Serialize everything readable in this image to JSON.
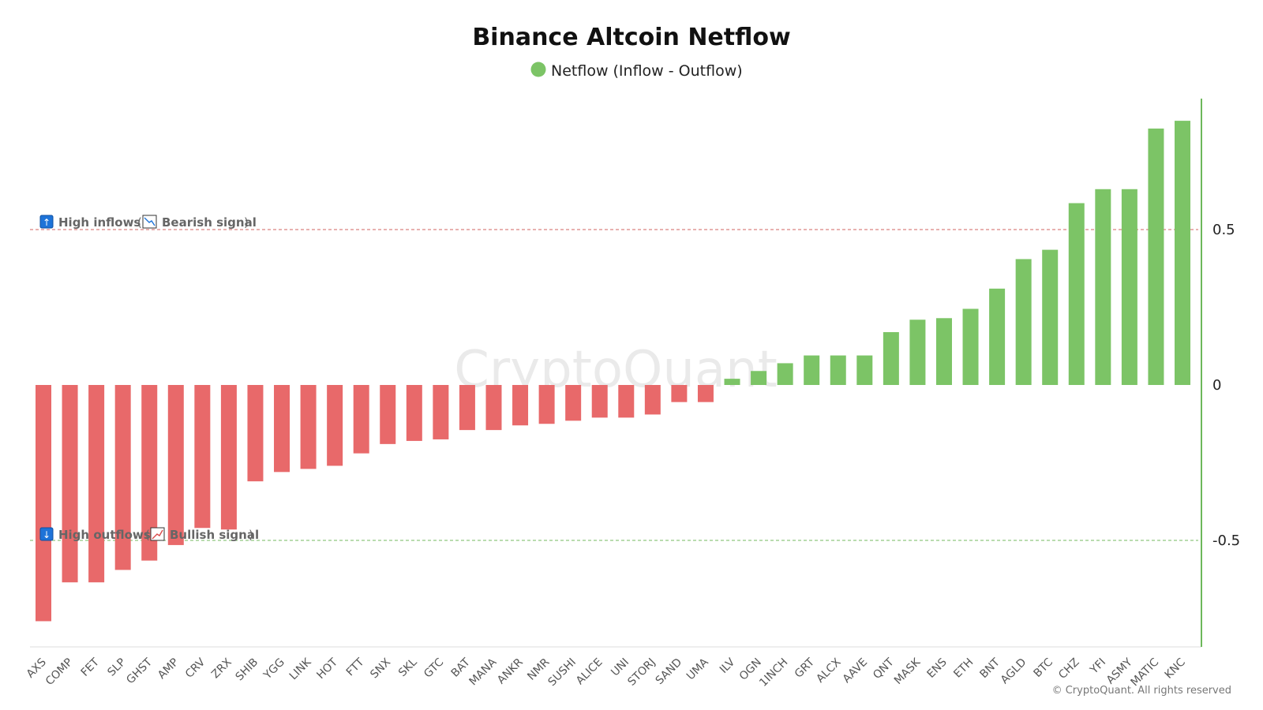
{
  "chart_data": {
    "type": "bar",
    "title": "Binance Altcoin Netflow",
    "legend": [
      {
        "label": "Netflow (Inflow - Outflow)",
        "color": "#7cc466"
      }
    ],
    "categories": [
      "AXS",
      "COMP",
      "FET",
      "SLP",
      "GHST",
      "AMP",
      "CRV",
      "ZRX",
      "SHIB",
      "YGG",
      "LINK",
      "HOT",
      "FTT",
      "SNX",
      "SKL",
      "GTC",
      "BAT",
      "MANA",
      "ANKR",
      "NMR",
      "SUSHI",
      "ALICE",
      "UNI",
      "STORJ",
      "SAND",
      "UMA",
      "ILV",
      "OGN",
      "1INCH",
      "GRT",
      "ALCX",
      "AAVE",
      "QNT",
      "MASK",
      "ENS",
      "ETH",
      "BNT",
      "AGLD",
      "BTC",
      "CHZ",
      "YFI",
      "ASMY",
      "MATIC",
      "KNC"
    ],
    "values": [
      -0.76,
      -0.635,
      -0.635,
      -0.595,
      -0.565,
      -0.515,
      -0.46,
      -0.465,
      -0.31,
      -0.28,
      -0.27,
      -0.26,
      -0.22,
      -0.19,
      -0.18,
      -0.175,
      -0.145,
      -0.145,
      -0.13,
      -0.125,
      -0.115,
      -0.105,
      -0.105,
      -0.095,
      -0.055,
      -0.055,
      0.02,
      0.045,
      0.07,
      0.095,
      0.095,
      0.095,
      0.17,
      0.21,
      0.215,
      0.245,
      0.31,
      0.405,
      0.435,
      0.585,
      0.63,
      0.63,
      0.825,
      0.85
    ],
    "positive_color": "#7cc466",
    "negative_color": "#e8696a",
    "ylim": [
      -0.85,
      0.92
    ],
    "yticks": [
      0.5,
      0,
      -0.5
    ],
    "ytick_labels": [
      "0.5",
      "0",
      "-0.5"
    ],
    "y_axis_position": "right",
    "reference_lines": [
      {
        "value": 0.5,
        "color": "#d9827f",
        "style": "dashed"
      },
      {
        "value": -0.5,
        "color": "#8fc77f",
        "style": "dashed"
      }
    ],
    "annotations": {
      "high_inflows": {
        "label": "High inflows",
        "signal": "Bearish signal",
        "icon": "up-arrow-icon",
        "signal_icon": "chart-down-icon"
      },
      "high_outflows": {
        "label": "High outflows",
        "signal": "Bullish signal",
        "icon": "down-arrow-icon",
        "signal_icon": "chart-up-icon"
      }
    },
    "xlabel": "",
    "ylabel": ""
  },
  "watermark": "CryptoQuant",
  "copyright": "© CryptoQuant. All rights reserved"
}
